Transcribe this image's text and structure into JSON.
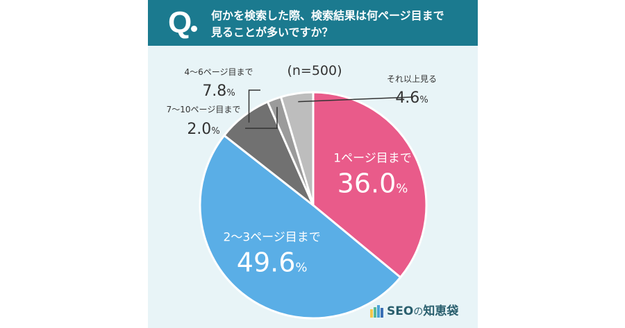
{
  "header": {
    "q_mark": "Q",
    "question_line1": "何かを検索した際、検索結果は何ページ目まで",
    "question_line2": "見ることが多いですか？"
  },
  "logo": {
    "name_prefix": "SEO",
    "name_particle": "の",
    "name_suffix": "知恵袋",
    "colors": [
      "#f2c94c",
      "#56b99a",
      "#4aa3d8",
      "#3a6fb5"
    ]
  },
  "chart_data": {
    "type": "pie",
    "subtitle": "(n=500)",
    "start": "12 o'clock",
    "direction": "clockwise",
    "slices": [
      {
        "label": "1ページ目まで",
        "value": 36.0,
        "value_text": "36.0",
        "unit": "%",
        "color": "#e95b8a",
        "label_placement": "inside"
      },
      {
        "label": "2〜3ページ目まで",
        "value": 49.6,
        "value_text": "49.6",
        "unit": "%",
        "color": "#5aaee6",
        "label_placement": "inside"
      },
      {
        "label": "4〜6ページ目まで",
        "value": 7.8,
        "value_text": "7.8",
        "unit": "%",
        "color": "#717171",
        "label_placement": "outside-left"
      },
      {
        "label": "7〜10ページ目まで",
        "value": 2.0,
        "value_text": "2.0",
        "unit": "%",
        "color": "#9b9b9b",
        "label_placement": "outside-left"
      },
      {
        "label": "それ以上見る",
        "value": 4.6,
        "value_text": "4.6",
        "unit": "%",
        "color": "#bdbdbd",
        "label_placement": "outside-right"
      }
    ]
  }
}
